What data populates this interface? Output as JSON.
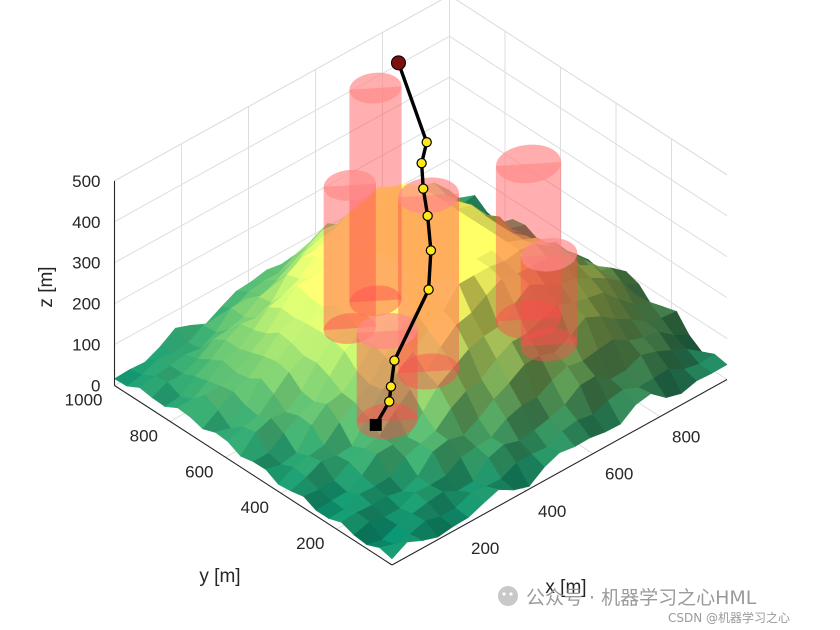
{
  "chart_data": {
    "type": "surface",
    "title": "",
    "xlabel": "x [m]",
    "ylabel": "y [m]",
    "zlabel": "z [m]",
    "xlim": [
      0,
      1000
    ],
    "ylim": [
      0,
      1000
    ],
    "zlim": [
      0,
      500
    ],
    "x_ticks": [
      "200",
      "400",
      "600",
      "800"
    ],
    "y_ticks": [
      "200",
      "400",
      "600",
      "800",
      "1000"
    ],
    "z_ticks": [
      "0",
      "100",
      "200",
      "300",
      "400",
      "500"
    ],
    "grid": true,
    "colormap": "summer",
    "terrain": {
      "description_values_peak_height": 260,
      "peaks": [
        {
          "x": 480,
          "y": 420,
          "z": 200
        },
        {
          "x": 640,
          "y": 720,
          "z": 260
        },
        {
          "x": 760,
          "y": 320,
          "z": 190
        },
        {
          "x": 300,
          "y": 700,
          "z": 120
        }
      ]
    },
    "obstacles": {
      "color": "#ff4d4d",
      "opacity": 0.45,
      "items": [
        {
          "x": 630,
          "y": 820,
          "radius": 60,
          "height": 520
        },
        {
          "x": 540,
          "y": 520,
          "radius": 70,
          "height": 430
        },
        {
          "x": 520,
          "y": 780,
          "radius": 60,
          "height": 350
        },
        {
          "x": 830,
          "y": 510,
          "radius": 75,
          "height": 380
        },
        {
          "x": 350,
          "y": 440,
          "radius": 70,
          "height": 220
        },
        {
          "x": 800,
          "y": 400,
          "radius": 65,
          "height": 220
        }
      ]
    },
    "path": {
      "color": "#000000",
      "waypoint_color": "#ffe81a",
      "points": [
        {
          "x": 200,
          "y": 300,
          "z": 120
        },
        {
          "x": 290,
          "y": 360,
          "z": 110
        },
        {
          "x": 320,
          "y": 390,
          "z": 120
        },
        {
          "x": 380,
          "y": 450,
          "z": 130
        },
        {
          "x": 540,
          "y": 520,
          "z": 200
        },
        {
          "x": 580,
          "y": 560,
          "z": 260
        },
        {
          "x": 620,
          "y": 620,
          "z": 300
        },
        {
          "x": 640,
          "y": 660,
          "z": 340
        },
        {
          "x": 660,
          "y": 690,
          "z": 380
        },
        {
          "x": 700,
          "y": 720,
          "z": 400
        },
        {
          "x": 740,
          "y": 870,
          "z": 510
        }
      ],
      "start_marker": "square",
      "end_marker": "circle",
      "end_color": "#7a1010"
    }
  },
  "watermark": {
    "main_text": "公众号 · 机器学习之心HML",
    "sub_text": "CSDN @机器学习之心"
  }
}
